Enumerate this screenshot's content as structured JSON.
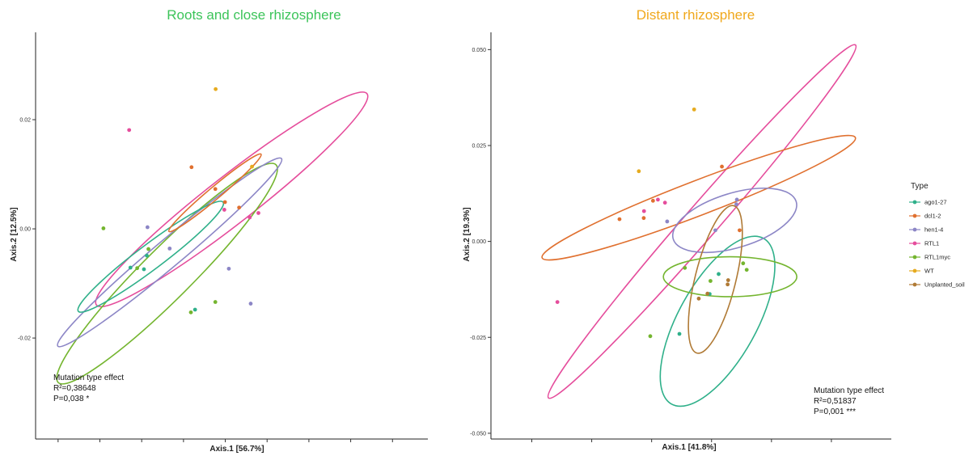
{
  "legend": {
    "title": "Type",
    "items": [
      {
        "name": "ago1-27",
        "color": "#2fb08a"
      },
      {
        "name": "dcl1-2",
        "color": "#e0702f"
      },
      {
        "name": "hen1-4",
        "color": "#8c86c6"
      },
      {
        "name": "RTL1",
        "color": "#e54d9c"
      },
      {
        "name": "RTL1myc",
        "color": "#74b52f"
      },
      {
        "name": "WT",
        "color": "#e6ab1f"
      },
      {
        "name": "Unplanted_soil",
        "color": "#b07a35"
      }
    ]
  },
  "chart_data": [
    {
      "type": "scatter",
      "title": "Roots and close rhizosphere",
      "title_color": "#3cc45a",
      "xlabel": "Axis.1   [56.7%]",
      "ylabel": "Axis.2   [12.5%]",
      "xlim": [
        -0.05,
        0.072
      ],
      "ylim": [
        -0.0385,
        0.036
      ],
      "yticks": [
        {
          "value": 0.02,
          "label": "0.02"
        },
        {
          "value": 0.0,
          "label": "0.00"
        },
        {
          "value": -0.02,
          "label": "-0.02"
        }
      ],
      "xticks": [
        -0.043,
        -0.03,
        -0.017,
        -0.004,
        0.009,
        0.022,
        0.035,
        0.048,
        0.061
      ],
      "annotation": {
        "line1": "Mutation type effect",
        "line2": "R²=0,38648",
        "line3": "P=0,038 *"
      },
      "ellipses": [
        {
          "type": "RTL1",
          "cx": 0.011,
          "cy": 0.0054,
          "rx": 0.0534,
          "ry": 0.0043,
          "angle_deg": -38
        },
        {
          "type": "RTL1myc",
          "cx": -0.0091,
          "cy": -0.0082,
          "rx": 0.0479,
          "ry": 0.0046,
          "angle_deg": -45
        },
        {
          "type": "hen1-4",
          "cx": -0.0083,
          "cy": -0.0043,
          "rx": 0.0454,
          "ry": 0.0025,
          "angle_deg": -40
        },
        {
          "type": "ago1-27",
          "cx": -0.0142,
          "cy": -0.0051,
          "rx": 0.0282,
          "ry": 0.0023,
          "angle_deg": -37
        },
        {
          "type": "dcl1-2",
          "cx": 0.0058,
          "cy": 0.0066,
          "rx": 0.0187,
          "ry": 0.0011,
          "angle_deg": -40
        }
      ],
      "series": [
        {
          "name": "WT",
          "points": [
            [
              0.006,
              0.0256
            ],
            [
              0.0173,
              0.0114
            ]
          ]
        },
        {
          "name": "RTL1",
          "points": [
            [
              -0.0209,
              0.0181
            ],
            [
              0.0087,
              0.0035
            ],
            [
              0.0166,
              0.0021
            ],
            [
              0.0193,
              0.0029
            ]
          ]
        },
        {
          "name": "dcl1-2",
          "points": [
            [
              -0.0015,
              0.0113
            ],
            [
              0.0059,
              0.0073
            ],
            [
              0.0089,
              0.0049
            ],
            [
              0.0133,
              0.0039
            ]
          ]
        },
        {
          "name": "hen1-4",
          "points": [
            [
              -0.0152,
              0.0003
            ],
            [
              -0.0083,
              -0.0036
            ],
            [
              0.0101,
              -0.0073
            ],
            [
              0.0169,
              -0.0137
            ]
          ]
        },
        {
          "name": "RTL1myc",
          "points": [
            [
              -0.0289,
              0.0001
            ],
            [
              -0.0149,
              -0.0037
            ],
            [
              -0.0184,
              -0.0072
            ],
            [
              0.0059,
              -0.0134
            ],
            [
              -0.0017,
              -0.0153
            ]
          ]
        },
        {
          "name": "ago1-27",
          "points": [
            [
              -0.0154,
              -0.0049
            ],
            [
              -0.0163,
              -0.0074
            ],
            [
              -0.0205,
              -0.0071
            ],
            [
              -0.0004,
              -0.0148
            ]
          ]
        }
      ]
    },
    {
      "type": "scatter",
      "title": "Distant rhizosphere",
      "title_color": "#f0a81c",
      "xlabel": "Axis.1   [41.8%]",
      "ylabel": "Axis.2   [19.3%]",
      "xlim": [
        -0.055,
        0.092
      ],
      "ylim": [
        -0.0515,
        0.0545
      ],
      "yticks": [
        {
          "value": 0.05,
          "label": "0.050"
        },
        {
          "value": 0.025,
          "label": "0.025"
        },
        {
          "value": 0.0,
          "label": "0.000"
        },
        {
          "value": -0.025,
          "label": "-0.025"
        },
        {
          "value": -0.05,
          "label": "-0.050"
        }
      ],
      "xticks": [
        -0.04,
        -0.018,
        0.004,
        0.026,
        0.048,
        0.07
      ],
      "annotation": {
        "line1": "Mutation type effect",
        "line2": "R²=0,51837",
        "line3": "P=0,001 ***"
      },
      "ellipses": [
        {
          "type": "RTL1",
          "cx": 0.0225,
          "cy": 0.0052,
          "rx": 0.0859,
          "ry": 0.0043,
          "angle_deg": -49
        },
        {
          "type": "dcl1-2",
          "cx": 0.0213,
          "cy": 0.0114,
          "rx": 0.0616,
          "ry": 0.0045,
          "angle_deg": -21
        },
        {
          "type": "ago1-27",
          "cx": 0.0282,
          "cy": -0.0208,
          "rx": 0.0348,
          "ry": 0.0102,
          "angle_deg": -61
        },
        {
          "type": "hen1-4",
          "cx": 0.0345,
          "cy": 0.0055,
          "rx": 0.0236,
          "ry": 0.0071,
          "angle_deg": -17
        },
        {
          "type": "Unplanted_soil",
          "cx": 0.0274,
          "cy": -0.0099,
          "rx": 0.0279,
          "ry": 0.0053,
          "angle_deg": -76
        },
        {
          "type": "RTL1myc",
          "cx": 0.0328,
          "cy": -0.0092,
          "rx": 0.0245,
          "ry": 0.0052,
          "angle_deg": 0
        }
      ],
      "series": [
        {
          "name": "WT",
          "points": [
            [
              0.0196,
              0.0344
            ],
            [
              -0.0007,
              0.0183
            ]
          ]
        },
        {
          "name": "RTL1",
          "points": [
            [
              -0.0306,
              -0.0158
            ],
            [
              0.0063,
              0.0109
            ],
            [
              0.0089,
              0.0101
            ],
            [
              0.0012,
              0.0079
            ]
          ]
        },
        {
          "name": "dcl1-2",
          "points": [
            [
              -0.0078,
              0.0058
            ],
            [
              0.0011,
              0.0061
            ],
            [
              0.0045,
              0.0106
            ],
            [
              0.0298,
              0.0195
            ],
            [
              0.0363,
              0.0029
            ]
          ]
        },
        {
          "name": "hen1-4",
          "points": [
            [
              0.0097,
              0.0052
            ],
            [
              0.0274,
              0.0029
            ],
            [
              0.0353,
              0.0109
            ],
            [
              0.0351,
              0.0097
            ]
          ]
        },
        {
          "name": "RTL1myc",
          "points": [
            [
              0.0162,
              -0.0069
            ],
            [
              0.0376,
              -0.0057
            ],
            [
              0.0389,
              -0.0074
            ],
            [
              0.0256,
              -0.0103
            ],
            [
              0.0035,
              -0.0247
            ]
          ]
        },
        {
          "name": "ago1-27",
          "points": [
            [
              0.0286,
              -0.0085
            ],
            [
              0.0253,
              -0.0137
            ],
            [
              0.0142,
              -0.0241
            ]
          ]
        },
        {
          "name": "Unplanted_soil",
          "points": [
            [
              0.0213,
              -0.0149
            ],
            [
              0.0245,
              -0.0136
            ],
            [
              0.0321,
              -0.0101
            ],
            [
              0.0319,
              -0.0112
            ]
          ]
        }
      ]
    }
  ]
}
